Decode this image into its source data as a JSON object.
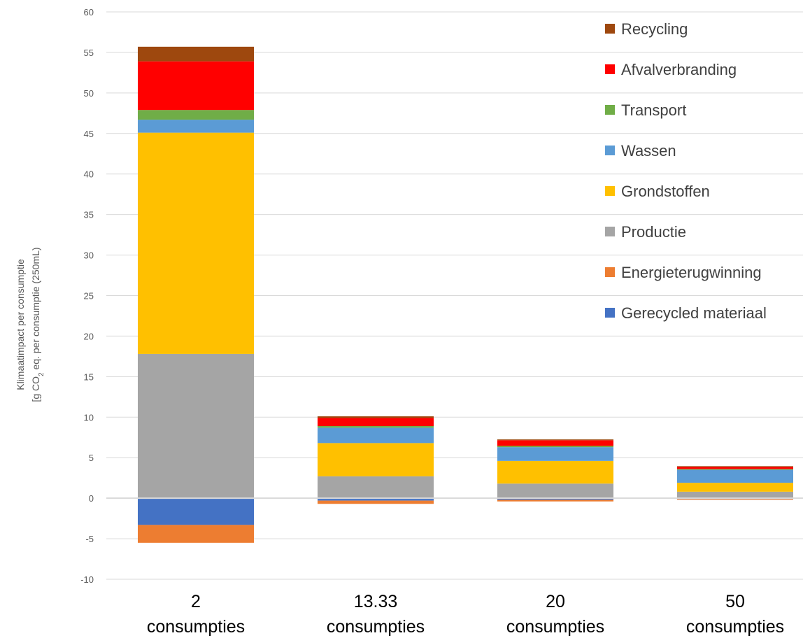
{
  "chart_data": {
    "type": "bar",
    "stacked": true,
    "title": "",
    "xlabel": "",
    "ylabel_line1": "Klimaatimpact per consumptie",
    "ylabel_line2_prefix": "[g CO",
    "ylabel_line2_sub": "2",
    "ylabel_line2_suffix": " eq. per consumptie (250mL)",
    "ylim": [
      -10,
      60
    ],
    "ytick_step": 5,
    "grid": true,
    "legend_position": "top-right",
    "categories": [
      {
        "line1": "2",
        "line2": "consumpties"
      },
      {
        "line1": "13.33",
        "line2": "consumpties"
      },
      {
        "line1": "20",
        "line2": "consumpties"
      },
      {
        "line1": "50",
        "line2": "consumpties"
      }
    ],
    "series": [
      {
        "name": "Gerecycled materiaal",
        "color": "#4472C4",
        "values": [
          -3.3,
          -0.3,
          -0.2,
          -0.1
        ]
      },
      {
        "name": "Energieterugwinning",
        "color": "#ED7D31",
        "values": [
          -2.2,
          -0.4,
          -0.2,
          -0.1
        ]
      },
      {
        "name": "Productie",
        "color": "#A5A5A5",
        "values": [
          17.8,
          2.7,
          1.8,
          0.8
        ]
      },
      {
        "name": "Grondstoffen",
        "color": "#FFC000",
        "values": [
          27.3,
          4.1,
          2.8,
          1.1
        ]
      },
      {
        "name": "Wassen",
        "color": "#5B9BD5",
        "values": [
          1.6,
          1.9,
          1.7,
          1.6
        ]
      },
      {
        "name": "Transport",
        "color": "#70AD47",
        "values": [
          1.2,
          0.2,
          0.15,
          0.1
        ]
      },
      {
        "name": "Afvalverbranding",
        "color": "#FF0000",
        "values": [
          6.0,
          1.0,
          0.7,
          0.25
        ]
      },
      {
        "name": "Recycling",
        "color": "#9E480E",
        "values": [
          1.8,
          0.2,
          0.1,
          0.1
        ]
      }
    ]
  }
}
